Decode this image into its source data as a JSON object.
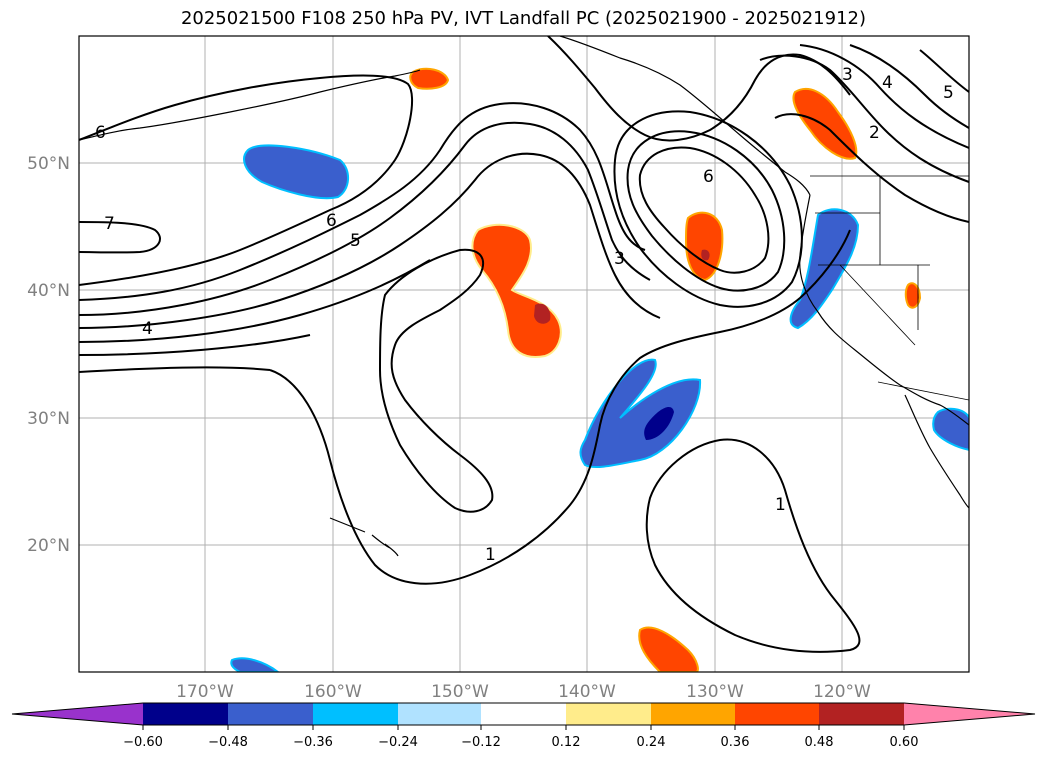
{
  "title": "2025021500 F108 250 hPa PV, IVT Landfall PC (2025021900 - 2025021912)",
  "lon_ticks": [
    "170°W",
    "160°W",
    "150°W",
    "140°W",
    "130°W",
    "120°W"
  ],
  "lat_ticks": [
    "20°N",
    "30°N",
    "40°N",
    "50°N"
  ],
  "contour_labels": [
    "6",
    "7",
    "4",
    "6",
    "5",
    "3",
    "6",
    "3",
    "4",
    "5",
    "2",
    "1",
    "1"
  ],
  "colorbar": {
    "ticks": [
      "−0.60",
      "−0.48",
      "−0.36",
      "−0.24",
      "−0.12",
      "0.12",
      "0.24",
      "0.36",
      "0.48",
      "0.60"
    ],
    "colors": [
      "#9932cc",
      "#00008b",
      "#3a5fcd",
      "#00bfff",
      "#b0e2ff",
      "#ffffff",
      "#ffec8b",
      "#ffa500",
      "#ff4500",
      "#b22222",
      "#ff82ab"
    ]
  },
  "colors": {
    "grid": "#b0b0b0",
    "contour": "#000000",
    "tick_label": "#808080"
  }
}
